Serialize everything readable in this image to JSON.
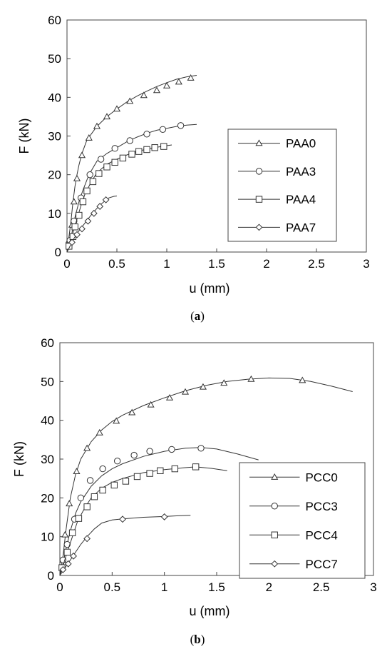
{
  "chart_data": [
    {
      "type": "line",
      "caption": "(a)",
      "caption_letter": "a",
      "xlabel": "u (mm)",
      "ylabel": "F (kN)",
      "xlim": [
        0,
        3
      ],
      "ylim": [
        0,
        60
      ],
      "xticks": [
        "0",
        "0.5",
        "1",
        "1.5",
        "2",
        "2.5",
        "3"
      ],
      "yticks": [
        "0",
        "10",
        "20",
        "30",
        "40",
        "50",
        "60"
      ],
      "grid": false,
      "legend_position": "right",
      "series": [
        {
          "name": "PAA0",
          "marker": "triangle",
          "curve": [
            [
              0,
              0
            ],
            [
              0.02,
              4
            ],
            [
              0.04,
              8
            ],
            [
              0.06,
              13
            ],
            [
              0.08,
              17
            ],
            [
              0.1,
              20
            ],
            [
              0.12,
              22.5
            ],
            [
              0.15,
              25.5
            ],
            [
              0.2,
              29
            ],
            [
              0.3,
              32.5
            ],
            [
              0.4,
              35
            ],
            [
              0.5,
              37
            ],
            [
              0.6,
              38.8
            ],
            [
              0.7,
              40.3
            ],
            [
              0.8,
              41.6
            ],
            [
              0.9,
              42.8
            ],
            [
              1.0,
              43.8
            ],
            [
              1.1,
              44.7
            ],
            [
              1.2,
              45.3
            ],
            [
              1.3,
              45.7
            ]
          ],
          "markers": [
            [
              0.02,
              3
            ],
            [
              0.05,
              7
            ],
            [
              0.07,
              13
            ],
            [
              0.1,
              19
            ],
            [
              0.15,
              25
            ],
            [
              0.22,
              29.5
            ],
            [
              0.3,
              32.5
            ],
            [
              0.4,
              35
            ],
            [
              0.5,
              37
            ],
            [
              0.63,
              39
            ],
            [
              0.77,
              40.5
            ],
            [
              0.9,
              41.8
            ],
            [
              1.0,
              43
            ],
            [
              1.12,
              44
            ],
            [
              1.24,
              45
            ]
          ]
        },
        {
          "name": "PAA3",
          "marker": "circle",
          "curve": [
            [
              0,
              0
            ],
            [
              0.02,
              2
            ],
            [
              0.05,
              5
            ],
            [
              0.08,
              9
            ],
            [
              0.12,
              13
            ],
            [
              0.16,
              16
            ],
            [
              0.22,
              20
            ],
            [
              0.3,
              23.5
            ],
            [
              0.4,
              25.5
            ],
            [
              0.5,
              27
            ],
            [
              0.6,
              28.5
            ],
            [
              0.7,
              29.7
            ],
            [
              0.8,
              30.7
            ],
            [
              0.9,
              31.5
            ],
            [
              1.0,
              32
            ],
            [
              1.1,
              32.5
            ],
            [
              1.2,
              32.8
            ],
            [
              1.3,
              33
            ]
          ],
          "markers": [
            [
              0.03,
              3
            ],
            [
              0.07,
              8
            ],
            [
              0.14,
              14
            ],
            [
              0.23,
              20
            ],
            [
              0.34,
              24
            ],
            [
              0.48,
              26.8
            ],
            [
              0.63,
              28.8
            ],
            [
              0.8,
              30.5
            ],
            [
              0.96,
              31.7
            ],
            [
              1.14,
              32.7
            ]
          ]
        },
        {
          "name": "PAA4",
          "marker": "square",
          "curve": [
            [
              0,
              0
            ],
            [
              0.02,
              2
            ],
            [
              0.06,
              5
            ],
            [
              0.1,
              8.5
            ],
            [
              0.14,
              12
            ],
            [
              0.18,
              15
            ],
            [
              0.24,
              18
            ],
            [
              0.3,
              20.5
            ],
            [
              0.4,
              22.7
            ],
            [
              0.5,
              24
            ],
            [
              0.6,
              25.1
            ],
            [
              0.7,
              26
            ],
            [
              0.8,
              26.6
            ],
            [
              0.9,
              27.1
            ],
            [
              1.0,
              27.5
            ],
            [
              1.05,
              27.7
            ]
          ],
          "markers": [
            [
              0.02,
              1.5
            ],
            [
              0.06,
              4
            ],
            [
              0.08,
              6.5
            ],
            [
              0.12,
              9.5
            ],
            [
              0.16,
              13
            ],
            [
              0.2,
              15.8
            ],
            [
              0.26,
              18.2
            ],
            [
              0.32,
              20.3
            ],
            [
              0.4,
              22
            ],
            [
              0.48,
              23.2
            ],
            [
              0.56,
              24.3
            ],
            [
              0.65,
              25.3
            ],
            [
              0.72,
              26
            ],
            [
              0.8,
              26.5
            ],
            [
              0.88,
              27
            ],
            [
              0.97,
              27.3
            ]
          ]
        },
        {
          "name": "PAA7",
          "marker": "diamond",
          "curve": [
            [
              0,
              0
            ],
            [
              0.03,
              1.5
            ],
            [
              0.07,
              3.5
            ],
            [
              0.12,
              5.5
            ],
            [
              0.18,
              7.5
            ],
            [
              0.24,
              9.5
            ],
            [
              0.3,
              11.3
            ],
            [
              0.36,
              12.8
            ],
            [
              0.42,
              14
            ],
            [
              0.47,
              14.4
            ],
            [
              0.5,
              14.5
            ]
          ],
          "markers": [
            [
              0.05,
              2.5
            ],
            [
              0.1,
              4.5
            ],
            [
              0.15,
              6
            ],
            [
              0.21,
              8
            ],
            [
              0.27,
              10
            ],
            [
              0.33,
              11.8
            ],
            [
              0.39,
              13.5
            ]
          ]
        }
      ]
    },
    {
      "type": "line",
      "caption": "(b)",
      "caption_letter": "b",
      "xlabel": "u (mm)",
      "ylabel": "F (kN)",
      "xlim": [
        0,
        3
      ],
      "ylim": [
        0,
        60
      ],
      "xticks": [
        "0",
        "0.5",
        "1",
        "1.5",
        "2",
        "2.5",
        "3"
      ],
      "yticks": [
        "0",
        "10",
        "20",
        "30",
        "40",
        "50",
        "60"
      ],
      "grid": false,
      "legend_position": "right",
      "series": [
        {
          "name": "PCC0",
          "marker": "triangle",
          "curve": [
            [
              0,
              0
            ],
            [
              0.03,
              5
            ],
            [
              0.06,
              12
            ],
            [
              0.1,
              20
            ],
            [
              0.15,
              26
            ],
            [
              0.2,
              30
            ],
            [
              0.3,
              34.5
            ],
            [
              0.4,
              37.5
            ],
            [
              0.5,
              39.7
            ],
            [
              0.6,
              41.3
            ],
            [
              0.8,
              43.8
            ],
            [
              1.0,
              45.8
            ],
            [
              1.2,
              47.6
            ],
            [
              1.4,
              49
            ],
            [
              1.6,
              50
            ],
            [
              1.8,
              50.6
            ],
            [
              2.0,
              50.9
            ],
            [
              2.2,
              50.8
            ],
            [
              2.4,
              50
            ],
            [
              2.6,
              48.8
            ],
            [
              2.8,
              47.4
            ]
          ],
          "markers": [
            [
              0.03,
              4
            ],
            [
              0.05,
              10.5
            ],
            [
              0.09,
              18.5
            ],
            [
              0.16,
              26.8
            ],
            [
              0.26,
              32.8
            ],
            [
              0.38,
              36.8
            ],
            [
              0.54,
              39.8
            ],
            [
              0.69,
              42
            ],
            [
              0.87,
              44
            ],
            [
              1.05,
              45.8
            ],
            [
              1.2,
              47.3
            ],
            [
              1.37,
              48.6
            ],
            [
              1.57,
              49.6
            ],
            [
              1.83,
              50.6
            ],
            [
              2.32,
              50.3
            ]
          ]
        },
        {
          "name": "PCC3",
          "marker": "circle",
          "curve": [
            [
              0,
              0
            ],
            [
              0.03,
              3
            ],
            [
              0.06,
              7
            ],
            [
              0.1,
              11.5
            ],
            [
              0.15,
              16
            ],
            [
              0.2,
              19
            ],
            [
              0.3,
              23
            ],
            [
              0.4,
              25.7
            ],
            [
              0.5,
              27.5
            ],
            [
              0.6,
              28.8
            ],
            [
              0.8,
              30.7
            ],
            [
              1.0,
              32
            ],
            [
              1.2,
              32.8
            ],
            [
              1.35,
              33
            ],
            [
              1.5,
              32.6
            ],
            [
              1.7,
              31.3
            ],
            [
              1.9,
              29.8
            ]
          ],
          "markers": [
            [
              0.03,
              4
            ],
            [
              0.07,
              8
            ],
            [
              0.14,
              14.5
            ],
            [
              0.2,
              20
            ],
            [
              0.29,
              24.5
            ],
            [
              0.41,
              27.5
            ],
            [
              0.55,
              29.5
            ],
            [
              0.71,
              31
            ],
            [
              0.86,
              32
            ],
            [
              1.07,
              32.5
            ],
            [
              1.35,
              32.8
            ]
          ]
        },
        {
          "name": "PCC4",
          "marker": "square",
          "curve": [
            [
              0,
              0
            ],
            [
              0.03,
              2.5
            ],
            [
              0.07,
              6
            ],
            [
              0.12,
              10
            ],
            [
              0.17,
              14
            ],
            [
              0.24,
              17.5
            ],
            [
              0.3,
              20
            ],
            [
              0.4,
              22.5
            ],
            [
              0.5,
              24
            ],
            [
              0.6,
              25
            ],
            [
              0.8,
              26.5
            ],
            [
              1.0,
              27.3
            ],
            [
              1.2,
              27.8
            ],
            [
              1.3,
              28
            ],
            [
              1.45,
              27.6
            ],
            [
              1.6,
              27
            ]
          ],
          "markers": [
            [
              0.02,
              2
            ],
            [
              0.07,
              6
            ],
            [
              0.12,
              11
            ],
            [
              0.18,
              14.7
            ],
            [
              0.26,
              17.7
            ],
            [
              0.33,
              20.3
            ],
            [
              0.41,
              22
            ],
            [
              0.52,
              23.3
            ],
            [
              0.63,
              24.3
            ],
            [
              0.74,
              25.5
            ],
            [
              0.86,
              26.3
            ],
            [
              0.96,
              27
            ],
            [
              1.1,
              27.5
            ],
            [
              1.3,
              28
            ]
          ]
        },
        {
          "name": "PCC7",
          "marker": "diamond",
          "curve": [
            [
              0,
              0
            ],
            [
              0.05,
              2
            ],
            [
              0.1,
              4
            ],
            [
              0.15,
              6
            ],
            [
              0.2,
              8
            ],
            [
              0.26,
              10
            ],
            [
              0.33,
              12
            ],
            [
              0.4,
              13.5
            ],
            [
              0.5,
              14.3
            ],
            [
              0.6,
              14.6
            ],
            [
              0.8,
              15
            ],
            [
              1.0,
              15.2
            ],
            [
              1.15,
              15.4
            ],
            [
              1.25,
              15.5
            ]
          ],
          "markers": [
            [
              0.03,
              1.5
            ],
            [
              0.08,
              3
            ],
            [
              0.13,
              5
            ],
            [
              0.26,
              9.5
            ],
            [
              0.6,
              14.5
            ],
            [
              1.0,
              15.1
            ]
          ]
        }
      ]
    }
  ]
}
